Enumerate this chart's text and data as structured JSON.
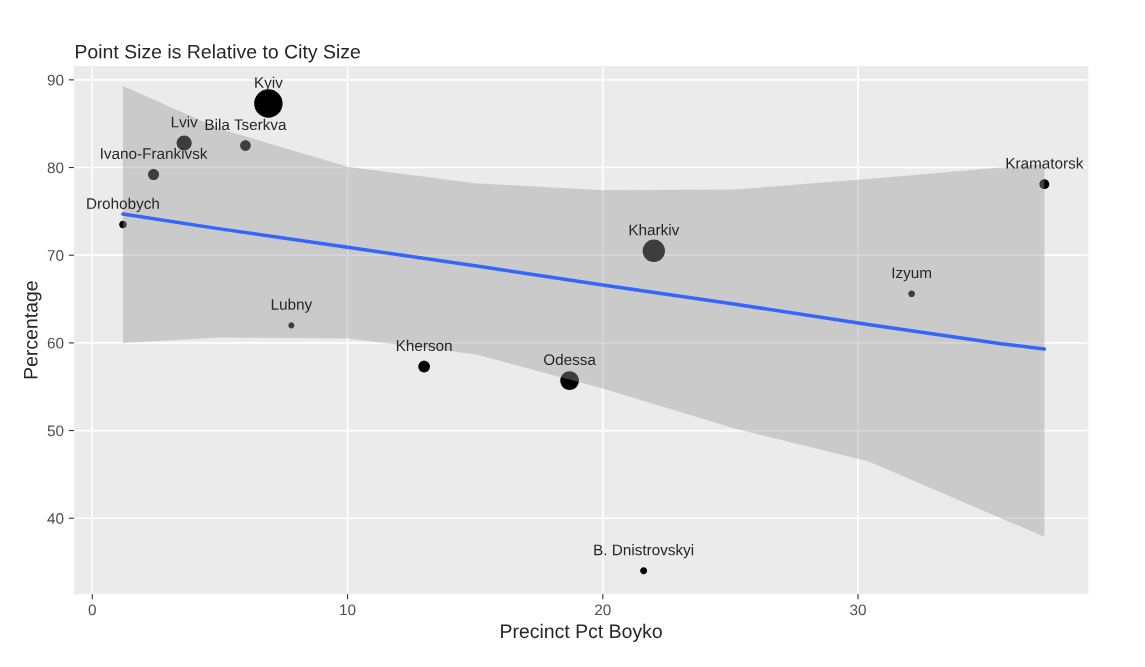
{
  "chart_data": {
    "type": "bubble",
    "title": "Point Size is Relative to City Size",
    "xlabel": "Precinct Pct Boyko",
    "ylabel": "Percentage",
    "series": [
      {
        "color": "#000000",
        "x": [
          6.9,
          3.6,
          6.0,
          2.4,
          1.2,
          7.8,
          13.0,
          18.7,
          21.6,
          22.0,
          32.1,
          37.3
        ],
        "values": [
          87.3,
          82.8,
          82.5,
          79.2,
          73.5,
          62.0,
          57.3,
          55.7,
          34.0,
          70.5,
          65.6,
          78.1
        ],
        "sizes": [
          1,
          0.28,
          0.14,
          0.15,
          0.07,
          0.046,
          0.17,
          0.43,
          0.06,
          0.62,
          0.055,
          0.12
        ]
      },
      {
        "type": "line",
        "color": "#3366ff",
        "x": [
          1.2,
          5,
          10,
          15,
          20,
          25.2,
          30.4,
          35.6,
          37.3
        ],
        "values": [
          74.7,
          73.0,
          70.9,
          68.8,
          66.6,
          64.4,
          62.1,
          59.9,
          59.3
        ],
        "lower": [
          60.0,
          60.6,
          60.5,
          58.7,
          54.8,
          50.2,
          46.5,
          40.0,
          37.9
        ],
        "upper": [
          89.3,
          84.4,
          80.1,
          78.2,
          77.4,
          77.5,
          78.7,
          80.0,
          80.4
        ]
      }
    ],
    "annotations": [
      {
        "text": "Kyiv",
        "x": 6.9,
        "y": 87.3
      },
      {
        "text": "Lviv",
        "x": 3.6,
        "y": 82.8
      },
      {
        "text": "Bila Tserkva",
        "x": 6.0,
        "y": 82.5
      },
      {
        "text": "Ivano-Frankivsk",
        "x": 2.4,
        "y": 79.2
      },
      {
        "text": "Drohobych",
        "x": 1.2,
        "y": 73.5
      },
      {
        "text": "Lubny",
        "x": 7.8,
        "y": 62.0
      },
      {
        "text": "Kherson",
        "x": 13.0,
        "y": 57.3
      },
      {
        "text": "Odessa",
        "x": 18.7,
        "y": 55.7
      },
      {
        "text": "B. Dnistrovskyi",
        "x": 21.6,
        "y": 34.0
      },
      {
        "text": "Kharkiv",
        "x": 22.0,
        "y": 70.5
      },
      {
        "text": "Izyum",
        "x": 32.1,
        "y": 65.6
      },
      {
        "text": "Kramatorsk",
        "x": 37.3,
        "y": 78.1
      }
    ],
    "xlim": [
      -0.7,
      39.0
    ],
    "ylim": [
      31.4,
      91.5
    ],
    "xticks": [
      0,
      10,
      20,
      30
    ],
    "yticks": [
      40,
      50,
      60,
      70,
      80,
      90
    ],
    "grid": true
  }
}
